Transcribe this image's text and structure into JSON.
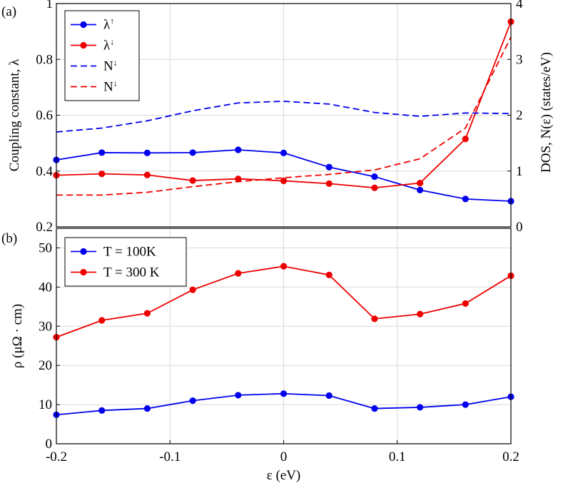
{
  "colors": {
    "blue": "#0000ee",
    "red": "#ee0000",
    "grid": "#d9d9d9",
    "frame": "#000000"
  },
  "chart_data": [
    {
      "type": "line",
      "panel_label": "(a)",
      "ylabel": "Coupling constant, λ",
      "y2label": "DOS, N(ε) (states/eV)",
      "xlim": [
        -0.2,
        0.2
      ],
      "ylim": [
        0.2,
        1.0
      ],
      "y2lim": [
        0,
        4
      ],
      "yticks": [
        0.2,
        0.4,
        0.6,
        0.8,
        1
      ],
      "yticklabels": [
        "0.2",
        "0.4",
        "0.6",
        "0.8",
        "1"
      ],
      "y2ticks": [
        0,
        1,
        2,
        3,
        4
      ],
      "y2ticklabels": [
        "0",
        "1",
        "2",
        "3",
        "4"
      ],
      "xgrid": [
        -0.2,
        -0.1,
        0,
        0.1,
        0.2
      ],
      "grid": true,
      "legend_position": "top-left",
      "series": [
        {
          "name": "λ↑",
          "base": "λ",
          "sup": "↑",
          "axis": "left",
          "style": "solid-marker",
          "color": "#0000ee",
          "x": [
            -0.2,
            -0.16,
            -0.12,
            -0.08,
            -0.04,
            0,
            0.04,
            0.08,
            0.12,
            0.16,
            0.2
          ],
          "y": [
            0.44,
            0.466,
            0.465,
            0.466,
            0.476,
            0.465,
            0.414,
            0.38,
            0.332,
            0.3,
            0.292
          ]
        },
        {
          "name": "λ↓",
          "base": "λ",
          "sup": "↓",
          "axis": "left",
          "style": "solid-marker",
          "color": "#ee0000",
          "x": [
            -0.2,
            -0.16,
            -0.12,
            -0.08,
            -0.04,
            0,
            0.04,
            0.08,
            0.12,
            0.16,
            0.2
          ],
          "y": [
            0.385,
            0.39,
            0.386,
            0.366,
            0.372,
            0.365,
            0.355,
            0.34,
            0.357,
            0.515,
            0.935
          ]
        },
        {
          "name": "N↓",
          "base": "N",
          "sup": "↓",
          "axis": "right",
          "style": "dashed",
          "color": "#0000ee",
          "x": [
            -0.2,
            -0.16,
            -0.12,
            -0.08,
            -0.04,
            0,
            0.04,
            0.08,
            0.12,
            0.16,
            0.2
          ],
          "y": [
            1.7,
            1.77,
            1.9,
            2.08,
            2.22,
            2.25,
            2.2,
            2.05,
            1.98,
            2.04,
            2.03
          ]
        },
        {
          "name": "N↓",
          "base": "N",
          "sup": "↓",
          "axis": "right",
          "style": "dashed",
          "color": "#ee0000",
          "x": [
            -0.2,
            -0.16,
            -0.12,
            -0.08,
            -0.04,
            0,
            0.04,
            0.08,
            0.12,
            0.16,
            0.2
          ],
          "y": [
            0.57,
            0.57,
            0.62,
            0.72,
            0.81,
            0.88,
            0.94,
            1.02,
            1.22,
            1.77,
            3.4
          ]
        }
      ]
    },
    {
      "type": "line",
      "panel_label": "(b)",
      "xlabel": "ε (eV)",
      "ylabel": "ρ (μΩ · cm)",
      "xlim": [
        -0.2,
        0.2
      ],
      "ylim": [
        0,
        55
      ],
      "yticks": [
        0,
        10,
        20,
        30,
        40,
        50
      ],
      "yticklabels": [
        "0",
        "10",
        "20",
        "30",
        "40",
        "50"
      ],
      "xticks": [
        -0.2,
        -0.1,
        0,
        0.1,
        0.2
      ],
      "xticklabels": [
        "-0.2",
        "-0.1",
        "0",
        "0.1",
        "0.2"
      ],
      "grid": true,
      "legend_position": "top-left",
      "series": [
        {
          "name": "T = 100K",
          "style": "solid-marker",
          "color": "#0000ee",
          "x": [
            -0.2,
            -0.16,
            -0.12,
            -0.08,
            -0.04,
            0,
            0.04,
            0.08,
            0.12,
            0.16,
            0.2
          ],
          "y": [
            7.4,
            8.5,
            9.0,
            11.0,
            12.4,
            12.8,
            12.3,
            9.0,
            9.3,
            10.0,
            12.0
          ]
        },
        {
          "name": "T = 300 K",
          "style": "solid-marker",
          "color": "#ee0000",
          "x": [
            -0.2,
            -0.16,
            -0.12,
            -0.08,
            -0.04,
            0,
            0.04,
            0.08,
            0.12,
            0.16,
            0.2
          ],
          "y": [
            27.2,
            31.5,
            33.3,
            39.3,
            43.5,
            45.3,
            43.1,
            31.9,
            33.1,
            35.8,
            42.9
          ]
        }
      ]
    }
  ]
}
